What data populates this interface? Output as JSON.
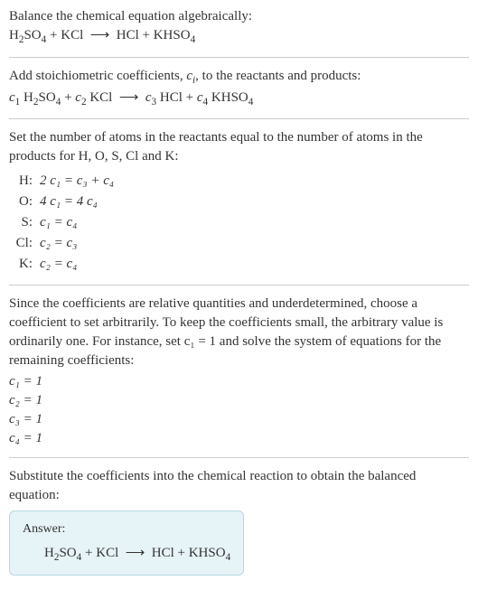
{
  "font_family": "Georgia, 'Times New Roman', serif",
  "base_fontsize": 15,
  "text_color": "#333333",
  "background_color": "#ffffff",
  "divider_color": "#cccccc",
  "answer_box": {
    "bg": "#e6f3f7",
    "border": "#b8d8e0",
    "radius": 6
  },
  "s1": {
    "line1": "Balance the chemical equation algebraically:"
  },
  "s2": {
    "line1_pre": "Add stoichiometric coefficients, ",
    "line1_ci": "c",
    "line1_ci_sub": "i",
    "line1_post": ", to the reactants and products:"
  },
  "s3": {
    "intro": "Set the number of atoms in the reactants equal to the number of atoms in the products for H, O, S, Cl and K:",
    "rows": [
      {
        "el": "H:",
        "eq": "2 c₁ = c₃ + c₄"
      },
      {
        "el": "O:",
        "eq": "4 c₁ = 4 c₄"
      },
      {
        "el": "S:",
        "eq": "c₁ = c₄"
      },
      {
        "el": "Cl:",
        "eq": "c₂ = c₃"
      },
      {
        "el": "K:",
        "eq": "c₂ = c₄"
      }
    ]
  },
  "s4": {
    "para": "Since the coefficients are relative quantities and underdetermined, choose a coefficient to set arbitrarily. To keep the coefficients small, the arbitrary value is ordinarily one. For instance, set c₁ = 1 and solve the system of equations for the remaining coefficients:",
    "coefs": [
      "c₁ = 1",
      "c₂ = 1",
      "c₃ = 1",
      "c₄ = 1"
    ]
  },
  "s5": {
    "para": "Substitute the coefficients into the chemical reaction to obtain the balanced equation:",
    "answer_label": "Answer:"
  }
}
